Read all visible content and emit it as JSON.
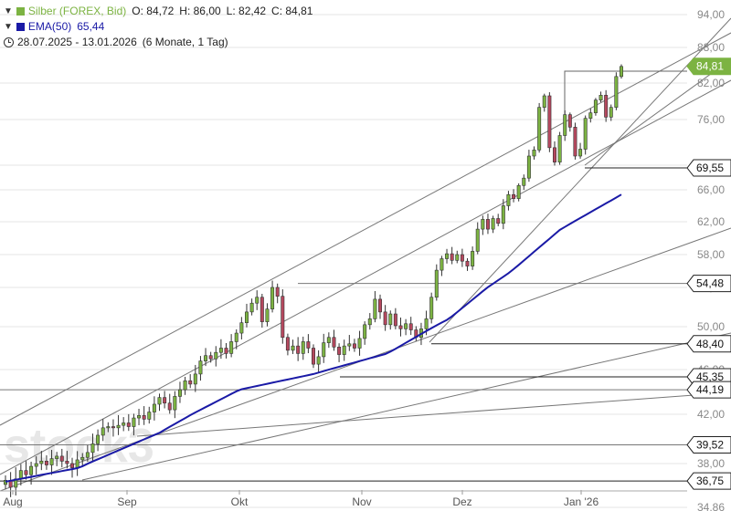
{
  "legend": {
    "instrument": "Silber (FOREX, Bid)",
    "open": "O: 84,72",
    "high": "H: 86,00",
    "low": "L: 82,42",
    "close": "C: 84,81",
    "ema_name": "EMA(50)",
    "ema_value": "65,44",
    "range": "28.07.2025 - 13.01.2026",
    "period": "(6 Monate, 1 Tag)",
    "colors": {
      "silver": "#7cb342",
      "ema": "#1a1aa6"
    }
  },
  "watermark": "stock3",
  "chart_data": {
    "type": "candlestick",
    "x_labels": [
      "Aug",
      "Sep",
      "Okt",
      "Nov",
      "Dez",
      "Jan '26"
    ],
    "y_ticks": [
      "34,86",
      "38,00",
      "42,00",
      "46,00",
      "50,00",
      "54,00",
      "58,00",
      "62,00",
      "66,00",
      "70,00",
      "76,00",
      "82,00",
      "88,00",
      "94,00"
    ],
    "y_tick_values": [
      34.86,
      38,
      42,
      46,
      50,
      54,
      58,
      62,
      66,
      70,
      76,
      82,
      88,
      94
    ],
    "current_price": {
      "label": "84,81",
      "value": 84.81,
      "color": "#7cb342"
    },
    "levels": [
      {
        "label": "69,55",
        "value": 69.55
      },
      {
        "label": "54,48",
        "value": 54.48
      },
      {
        "label": "48,40",
        "value": 48.4
      },
      {
        "label": "45,35",
        "value": 45.35
      },
      {
        "label": "44,19",
        "value": 44.19
      },
      {
        "label": "39,52",
        "value": 39.52
      },
      {
        "label": "36,75",
        "value": 36.75
      }
    ],
    "colors": {
      "up": "#7cb342",
      "down": "#b5485e",
      "ema": "#1a1aa6",
      "line": "#777777",
      "grid": "#e6e6e6"
    }
  }
}
